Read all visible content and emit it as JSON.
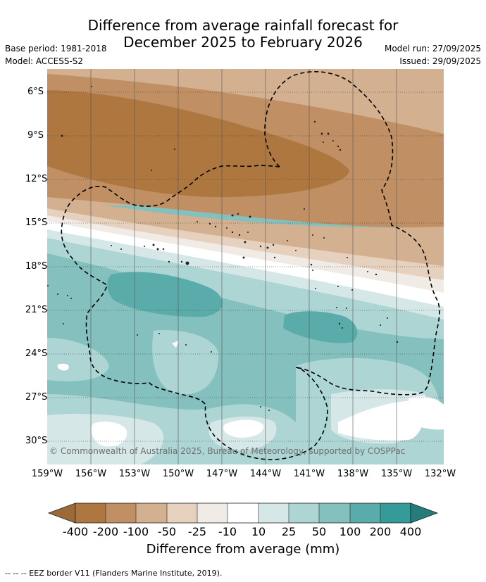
{
  "header": {
    "title_line1": "Difference from average rainfall forecast for",
    "title_line2": "December 2025 to February 2026",
    "base_period": "Base period: 1981-2018",
    "model": "Model: ACCESS-S2",
    "model_run": "Model run: 27/09/2025",
    "issued": "Issued: 29/09/2025"
  },
  "map": {
    "lat_labels": [
      "6°S",
      "9°S",
      "12°S",
      "15°S",
      "18°S",
      "21°S",
      "24°S",
      "27°S",
      "30°S"
    ],
    "lon_labels": [
      "159°W",
      "156°W",
      "153°W",
      "150°W",
      "147°W",
      "144°W",
      "141°W",
      "138°W",
      "135°W",
      "132°W"
    ],
    "copyright": "© Commonwealth of Australia 2025, Bureau of Meteorology, supported by COSPPac",
    "colors": {
      "lt_-400": "#9c6a37",
      "n400_200": "#ad773f",
      "n200_100": "#c09064",
      "n100_50": "#d3b08f",
      "n50_25": "#e5d1bd",
      "n25_10": "#f1ebe6",
      "n10_10": "#ffffff",
      "p10_25": "#d5e8e7",
      "p25_50": "#acd5d3",
      "p50_100": "#83c0be",
      "p100_200": "#5aacaa",
      "p200_400": "#349b98",
      "gt_400": "#267c7a"
    }
  },
  "colorbar": {
    "tick_labels": [
      "-400",
      "-200",
      "-100",
      "-50",
      "-25",
      "-10",
      "10",
      "25",
      "50",
      "100",
      "200",
      "400"
    ],
    "title": "Difference from average (mm)"
  },
  "footer": {
    "legend_text": "--  --  -- EEZ border V11 (Flanders Marine Institute, 2019)."
  }
}
